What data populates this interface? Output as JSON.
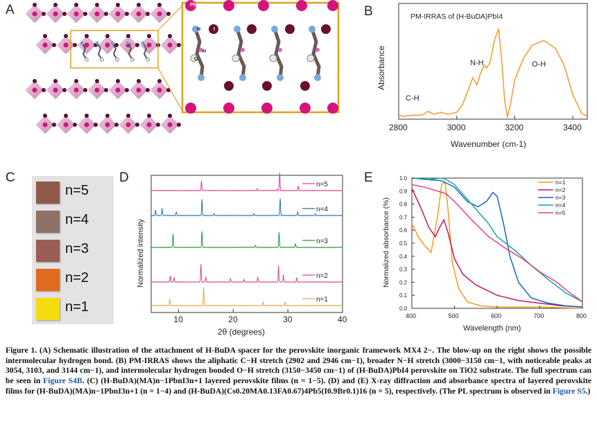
{
  "panels": {
    "A": {
      "letter": "A",
      "atoms": {
        "Pb": "Pb",
        "I": "I",
        "N": "N",
        "O": "O",
        "H": "H"
      }
    },
    "B": {
      "letter": "B",
      "inset_title": "PM-IRRAS of (H-BuDA)PbI4",
      "peak_labels": [
        "C-H",
        "N-H",
        "O-H"
      ],
      "chart_data": {
        "type": "line",
        "title": "",
        "xlabel": "Wavenumber (cm-1)",
        "ylabel": "Absorbance",
        "xlim": [
          2800,
          3450
        ],
        "xticks": [
          "2800",
          "3000",
          "3200",
          "3400"
        ],
        "series": [
          {
            "x": [
              2800,
              2820,
              2850,
              2880,
              2902,
              2920,
              2946,
              2970,
              3000,
              3020,
              3040,
              3055,
              3070,
              3080,
              3095,
              3103,
              3115,
              3130,
              3144,
              3155,
              3165,
              3175,
              3185,
              3200,
              3230,
              3260,
              3300,
              3340,
              3370,
              3400,
              3430,
              3450
            ],
            "y": [
              0.04,
              0.03,
              0.04,
              0.04,
              0.08,
              0.05,
              0.07,
              0.05,
              0.07,
              0.15,
              0.3,
              0.42,
              0.35,
              0.45,
              0.55,
              0.52,
              0.58,
              0.8,
              0.92,
              0.6,
              0.2,
              0.02,
              0.15,
              0.4,
              0.62,
              0.75,
              0.8,
              0.72,
              0.55,
              0.25,
              0.06,
              0.03
            ]
          }
        ]
      }
    },
    "C": {
      "letter": "C",
      "samples": [
        {
          "label": "n=5",
          "color": "#8f5a4c"
        },
        {
          "label": "n=4",
          "color": "#8e7266"
        },
        {
          "label": "n=3",
          "color": "#9a5d58"
        },
        {
          "label": "n=2",
          "color": "#e06a1e"
        },
        {
          "label": "n=1",
          "color": "#f4dc10"
        }
      ]
    },
    "D": {
      "letter": "D",
      "chart_data": {
        "type": "line",
        "title": "",
        "xlabel": "2θ (degrees)",
        "ylabel": "Normalized intensity",
        "xlim": [
          5,
          40
        ],
        "xticks": [
          "10",
          "20",
          "30",
          "40"
        ],
        "series": [
          {
            "name": "n=5",
            "color": "#e0408a",
            "peaks": [
              [
                14.2,
                0.55
              ],
              [
                24.4,
                0.12
              ],
              [
                28.5,
                1.0
              ],
              [
                31.9,
                0.25
              ],
              [
                28.0,
                0.08
              ]
            ]
          },
          {
            "name": "n=4",
            "color": "#2a6fb5",
            "peaks": [
              [
                5.8,
                0.3
              ],
              [
                7.0,
                0.4
              ],
              [
                9.6,
                0.2
              ],
              [
                14.3,
                0.9
              ],
              [
                16.5,
                0.1
              ],
              [
                23.8,
                0.1
              ],
              [
                28.6,
                0.95
              ],
              [
                31.8,
                0.2
              ],
              [
                35.0,
                0.1
              ]
            ]
          },
          {
            "name": "n=3",
            "color": "#1f9a34",
            "peaks": [
              [
                9.0,
                0.75
              ],
              [
                14.3,
                0.9
              ],
              [
                24.1,
                0.1
              ],
              [
                28.4,
                0.85
              ],
              [
                31.4,
                0.2
              ]
            ]
          },
          {
            "name": "n=2",
            "color": "#d24a86",
            "peaks": [
              [
                8.5,
                0.35
              ],
              [
                9.2,
                0.25
              ],
              [
                14.1,
                1.0
              ],
              [
                15.0,
                0.3
              ],
              [
                19.5,
                0.2
              ],
              [
                22.0,
                0.15
              ],
              [
                24.5,
                0.3
              ],
              [
                28.3,
                0.9
              ],
              [
                29.2,
                0.4
              ],
              [
                31.6,
                0.25
              ]
            ]
          },
          {
            "name": "n=1",
            "color": "#f0a040",
            "peaks": [
              [
                8.4,
                0.35
              ],
              [
                14.6,
                1.0
              ],
              [
                25.5,
                0.2
              ],
              [
                29.5,
                0.2
              ]
            ]
          }
        ]
      }
    },
    "E": {
      "letter": "E",
      "chart_data": {
        "type": "line",
        "title": "",
        "xlabel": "Wavelength (nm)",
        "ylabel": "Normalized absorbance (%)",
        "xlim": [
          400,
          800
        ],
        "ylim": [
          0,
          1.0
        ],
        "xticks": [
          "400",
          "500",
          "600",
          "700",
          "800"
        ],
        "yticks": [
          "0.0",
          "0.1",
          "0.2",
          "0.3",
          "0.4",
          "0.5",
          "0.6",
          "0.7",
          "0.8",
          "0.9",
          "1.0"
        ],
        "series": [
          {
            "name": "n=1",
            "color": "#f59a1a",
            "x": [
              400,
              415,
              430,
              445,
              460,
              470,
              478,
              485,
              495,
              510,
              530,
              560,
              600,
              650,
              700,
              800
            ],
            "y": [
              0.65,
              0.55,
              0.48,
              0.43,
              0.7,
              0.95,
              0.97,
              0.75,
              0.35,
              0.15,
              0.05,
              0.02,
              0.01,
              0.01,
              0.01,
              0.0
            ]
          },
          {
            "name": "n=2",
            "color": "#c2185b",
            "x": [
              400,
              420,
              440,
              455,
              465,
              475,
              485,
              500,
              520,
              550,
              600,
              650,
              700,
              750,
              800
            ],
            "y": [
              0.92,
              0.78,
              0.62,
              0.55,
              0.62,
              0.68,
              0.58,
              0.38,
              0.26,
              0.18,
              0.1,
              0.06,
              0.04,
              0.02,
              0.01
            ]
          },
          {
            "name": "n=3",
            "color": "#1565c0",
            "x": [
              400,
              430,
              470,
              500,
              530,
              555,
              575,
              590,
              600,
              615,
              630,
              650,
              680,
              720,
              760,
              800
            ],
            "y": [
              1.0,
              0.99,
              0.98,
              0.93,
              0.82,
              0.78,
              0.82,
              0.89,
              0.86,
              0.65,
              0.4,
              0.2,
              0.08,
              0.04,
              0.02,
              0.01
            ]
          },
          {
            "name": "n=4",
            "color": "#17a2a0",
            "x": [
              400,
              440,
              470,
              480,
              500,
              540,
              580,
              600,
              640,
              680,
              720,
              760,
              800
            ],
            "y": [
              1.0,
              0.99,
              1.0,
              0.99,
              0.95,
              0.8,
              0.65,
              0.55,
              0.45,
              0.33,
              0.22,
              0.12,
              0.05
            ]
          },
          {
            "name": "n=5",
            "color": "#e0408a",
            "x": [
              400,
              430,
              460,
              480,
              500,
              540,
              580,
              620,
              660,
              700,
              740,
              770,
              800
            ],
            "y": [
              0.95,
              0.93,
              0.9,
              0.88,
              0.82,
              0.68,
              0.55,
              0.46,
              0.38,
              0.28,
              0.2,
              0.12,
              0.05
            ]
          }
        ]
      }
    }
  },
  "caption": {
    "lead": "Figure 1. (A) Schematic illustration of the attachment of H-BuDA spacer for the perovskite inorganic framework MX4 2−. The blow-up on the right shows the possible intermolecular hydrogen bond. (B) PM-IRRAS shows the aliphatic C−H stretch (2902 and 2946 cm−1), broader N−H stretch (3000−3150 cm−1, with noticeable peaks at 3054, 3103, and 3144 cm−1), and intermolecular hydrogen bonded O−H stretch (3150−3450 cm−1) of (H-BuDA)PbI4 perovskite on TiO2 substrate. The full spectrum can be seen in",
    "ref1": "Figure S4B",
    "mid": ". (C) (H-BuDA)(MA)n−1PbnI3n+1 layered perovskite films (n = 1−5). (D) and (E) X-ray diffraction and absorbance spectra of layered perovskite films for (H-BuDA)(MA)n−1PbnI3n+1 (n = 1−4) and (H-BuDA)(Cs0.20MA0.13FA0.67)4Pb5(I0.9Br0.1)16 (n = 5), respectively. (The PL spectrum is observed in",
    "ref2": "Figure S5",
    "end": ".)"
  }
}
